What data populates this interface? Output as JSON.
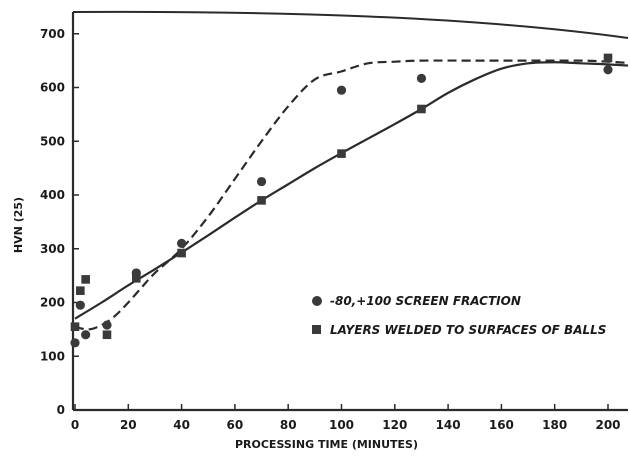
{
  "chart_data": {
    "type": "scatter",
    "xlabel": "PROCESSING TIME (MINUTES)",
    "ylabel": "HVN (25)",
    "xlim": [
      0,
      210
    ],
    "ylim": [
      0,
      750
    ],
    "x_ticks": [
      0,
      20,
      40,
      60,
      80,
      100,
      120,
      140,
      160,
      180,
      200
    ],
    "y_ticks": [
      0,
      100,
      200,
      300,
      400,
      500,
      600,
      700
    ],
    "grid": false,
    "legend_position": "center-right",
    "series": [
      {
        "name": "-80,+100 SCREEN FRACTION",
        "marker": "circle",
        "color": "#3a3a3a",
        "x": [
          0,
          2,
          4,
          12,
          23,
          40,
          70,
          100,
          130,
          200
        ],
        "y": [
          125,
          195,
          140,
          158,
          255,
          310,
          425,
          595,
          617,
          633
        ],
        "fit": {
          "style": "dashed",
          "x": [
            0,
            5,
            10,
            15,
            20,
            25,
            30,
            40,
            50,
            60,
            70,
            80,
            90,
            100,
            110,
            120,
            130,
            150,
            170,
            190,
            200,
            210
          ],
          "y": [
            155,
            150,
            158,
            175,
            200,
            228,
            255,
            300,
            360,
            430,
            500,
            565,
            615,
            630,
            645,
            648,
            650,
            650,
            650,
            650,
            648,
            645
          ]
        }
      },
      {
        "name": "LAYERS WELDED TO SURFACES OF BALLS",
        "marker": "square",
        "color": "#3a3a3a",
        "x": [
          0,
          2,
          4,
          12,
          23,
          40,
          70,
          100,
          130,
          200
        ],
        "y": [
          155,
          222,
          243,
          140,
          245,
          292,
          390,
          477,
          560,
          655
        ],
        "fit": {
          "style": "solid",
          "x": [
            0,
            10,
            20,
            30,
            40,
            50,
            60,
            70,
            80,
            90,
            100,
            110,
            120,
            130,
            140,
            150,
            160,
            170,
            180,
            190,
            200,
            210
          ],
          "y": [
            170,
            200,
            232,
            262,
            293,
            325,
            358,
            390,
            420,
            450,
            478,
            505,
            532,
            560,
            590,
            615,
            635,
            645,
            647,
            645,
            643,
            640
          ]
        }
      }
    ]
  }
}
